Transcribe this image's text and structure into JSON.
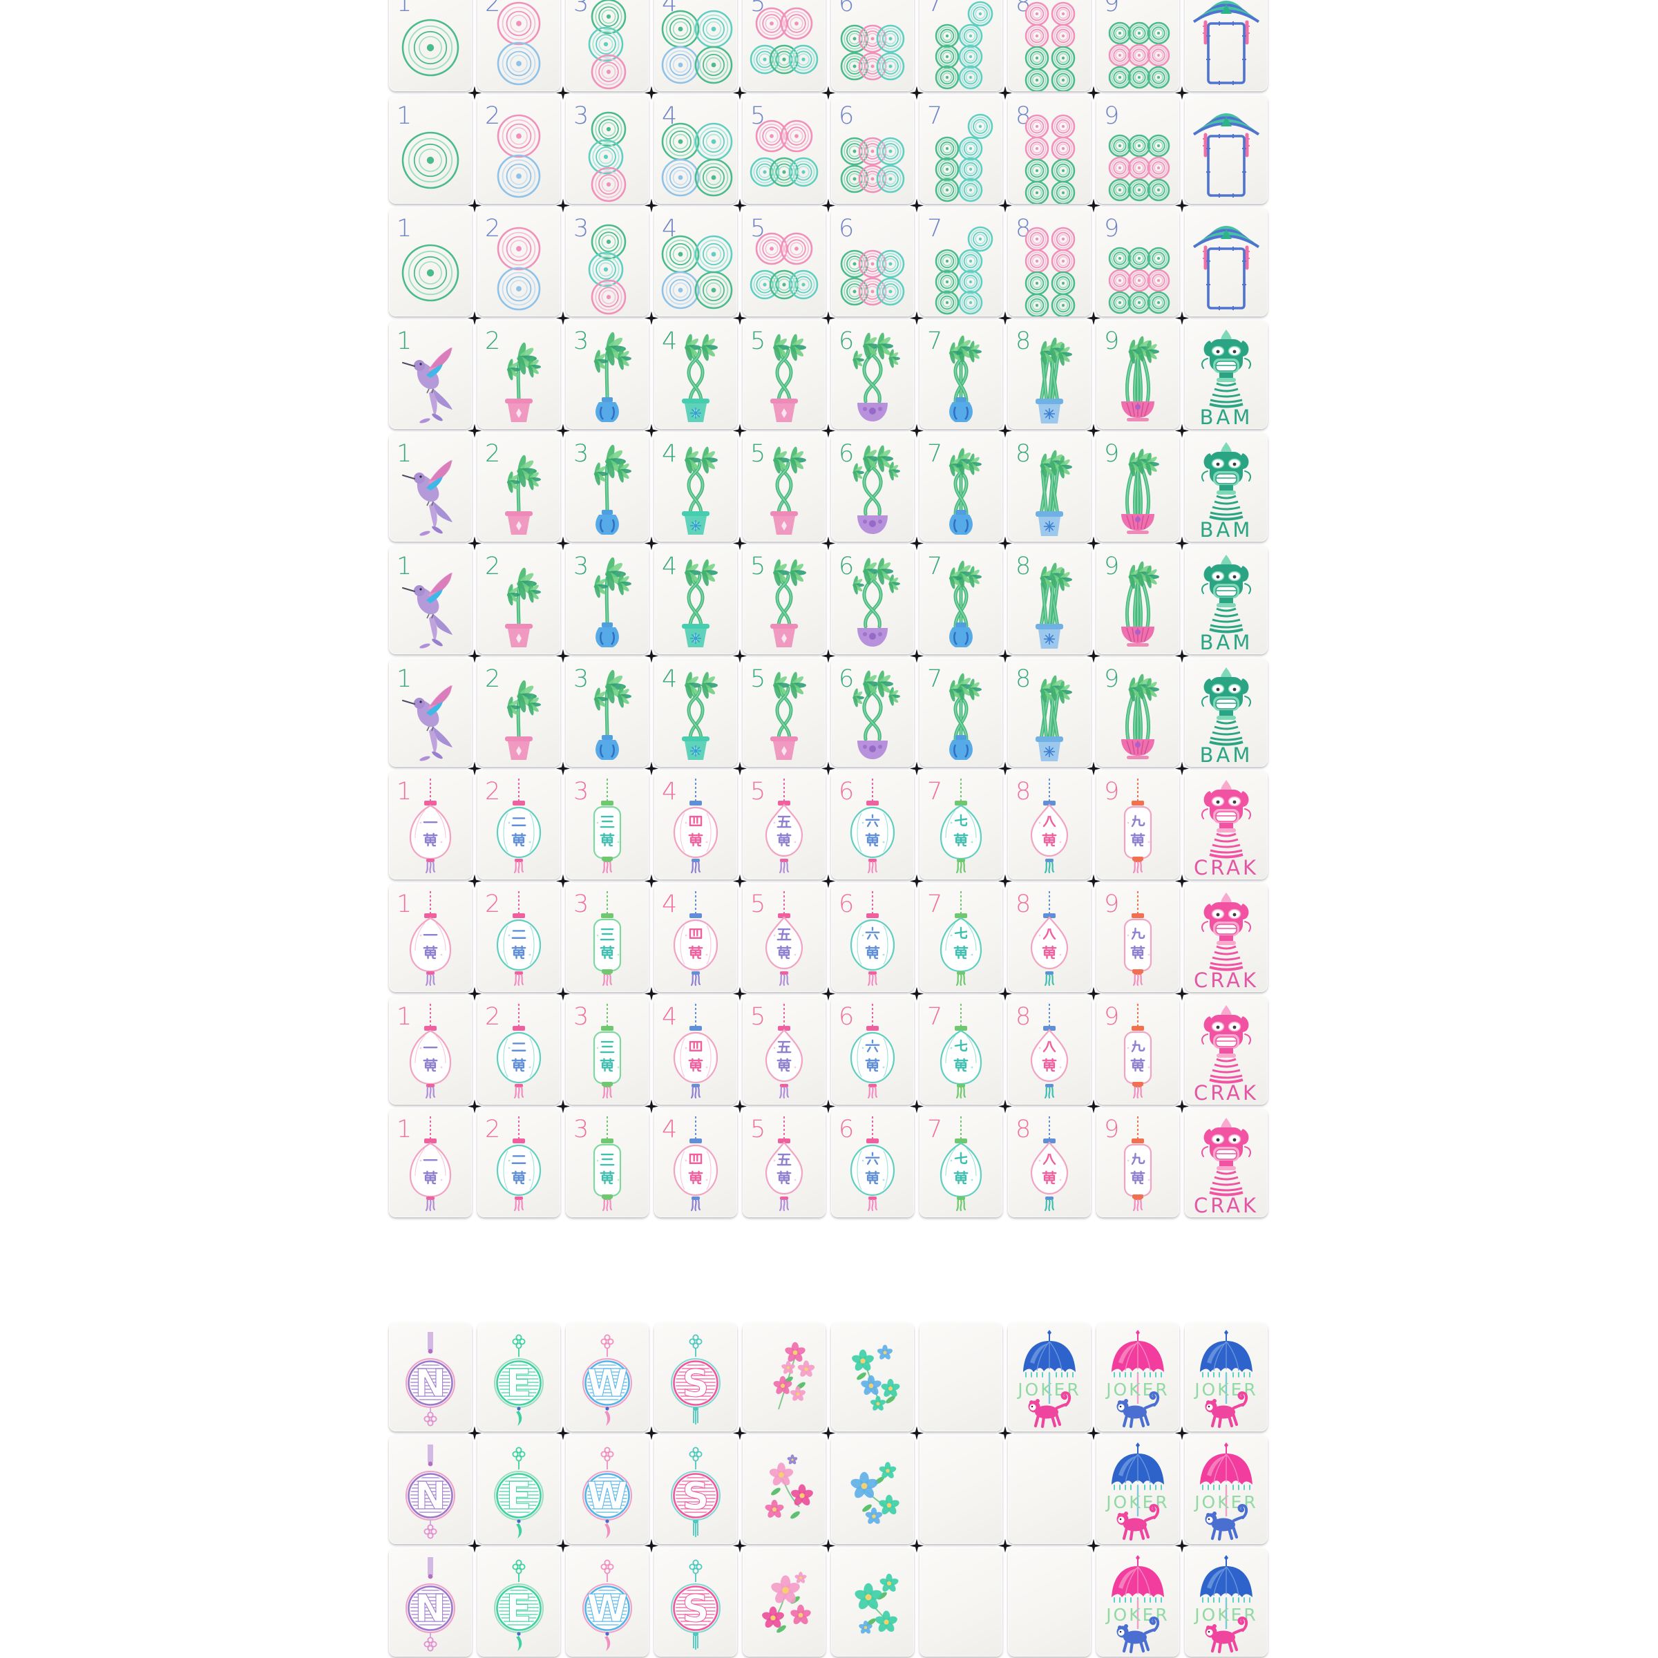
{
  "palette": {
    "tile_face": "#f6f5f2",
    "junction_shadow": "#15151a",
    "dot_number": "#6e84c4",
    "bam_number": "#3aa87f",
    "crak_number": "#ef719f",
    "green": "#4bbb8b",
    "mint": "#9adfc0",
    "teal": "#5fcfc2",
    "teal_light": "#a9e6de",
    "pink": "#f190bb",
    "pink_light": "#f7c0d8",
    "sky": "#8fc2e8",
    "sky_light": "#c6def2",
    "rose": "#ef5fa2",
    "blue": "#4f74cf",
    "purple": "#9b77cc",
    "lavender": "#b99add",
    "joker_green": "#92d9a4",
    "bam_dragon_green": "#2aa483",
    "crak_dragon_pink": "#f153a2",
    "leaf_green": "#46b86f",
    "stalk_green": "#49b87e"
  },
  "suits": {
    "dots": {
      "number_color": "#6e84c4"
    },
    "bams": {
      "number_color": "#3aa87f",
      "dragon_label": "BAM"
    },
    "craks": {
      "number_color": "#ef719f",
      "dragon_label": "CRAK"
    },
    "jokers": {
      "label": "JOKER"
    },
    "winds": {
      "letters": [
        "N",
        "E",
        "W",
        "S"
      ]
    }
  },
  "top_board": {
    "rows": [
      {
        "suit": "dots",
        "cut_top": true,
        "tiles": [
          {
            "type": "dot",
            "n": 1
          },
          {
            "type": "dot",
            "n": 2
          },
          {
            "type": "dot",
            "n": 3
          },
          {
            "type": "dot",
            "n": 4
          },
          {
            "type": "dot",
            "n": 5
          },
          {
            "type": "dot",
            "n": 6
          },
          {
            "type": "dot",
            "n": 7
          },
          {
            "type": "dot",
            "n": 8
          },
          {
            "type": "dot",
            "n": 9
          },
          {
            "type": "soap"
          }
        ]
      },
      {
        "suit": "dots",
        "tiles": [
          {
            "type": "dot",
            "n": 1
          },
          {
            "type": "dot",
            "n": 2
          },
          {
            "type": "dot",
            "n": 3
          },
          {
            "type": "dot",
            "n": 4
          },
          {
            "type": "dot",
            "n": 5
          },
          {
            "type": "dot",
            "n": 6
          },
          {
            "type": "dot",
            "n": 7
          },
          {
            "type": "dot",
            "n": 8
          },
          {
            "type": "dot",
            "n": 9
          },
          {
            "type": "soap"
          }
        ]
      },
      {
        "suit": "dots",
        "tiles": [
          {
            "type": "dot",
            "n": 1
          },
          {
            "type": "dot",
            "n": 2
          },
          {
            "type": "dot",
            "n": 3
          },
          {
            "type": "dot",
            "n": 4
          },
          {
            "type": "dot",
            "n": 5
          },
          {
            "type": "dot",
            "n": 6
          },
          {
            "type": "dot",
            "n": 7
          },
          {
            "type": "dot",
            "n": 8
          },
          {
            "type": "dot",
            "n": 9
          },
          {
            "type": "soap"
          }
        ]
      },
      {
        "suit": "bams",
        "tiles": [
          {
            "type": "bam",
            "n": 1
          },
          {
            "type": "bam",
            "n": 2
          },
          {
            "type": "bam",
            "n": 3
          },
          {
            "type": "bam",
            "n": 4
          },
          {
            "type": "bam",
            "n": 5
          },
          {
            "type": "bam",
            "n": 6
          },
          {
            "type": "bam",
            "n": 7
          },
          {
            "type": "bam",
            "n": 8
          },
          {
            "type": "bam",
            "n": 9
          },
          {
            "type": "dragon",
            "suit": "bams",
            "label": "BAM"
          }
        ]
      },
      {
        "suit": "bams",
        "tiles": [
          {
            "type": "bam",
            "n": 1
          },
          {
            "type": "bam",
            "n": 2
          },
          {
            "type": "bam",
            "n": 3
          },
          {
            "type": "bam",
            "n": 4
          },
          {
            "type": "bam",
            "n": 5
          },
          {
            "type": "bam",
            "n": 6
          },
          {
            "type": "bam",
            "n": 7
          },
          {
            "type": "bam",
            "n": 8
          },
          {
            "type": "bam",
            "n": 9
          },
          {
            "type": "dragon",
            "suit": "bams",
            "label": "BAM"
          }
        ]
      },
      {
        "suit": "bams",
        "tiles": [
          {
            "type": "bam",
            "n": 1
          },
          {
            "type": "bam",
            "n": 2
          },
          {
            "type": "bam",
            "n": 3
          },
          {
            "type": "bam",
            "n": 4
          },
          {
            "type": "bam",
            "n": 5
          },
          {
            "type": "bam",
            "n": 6
          },
          {
            "type": "bam",
            "n": 7
          },
          {
            "type": "bam",
            "n": 8
          },
          {
            "type": "bam",
            "n": 9
          },
          {
            "type": "dragon",
            "suit": "bams",
            "label": "BAM"
          }
        ]
      },
      {
        "suit": "bams",
        "tiles": [
          {
            "type": "bam",
            "n": 1
          },
          {
            "type": "bam",
            "n": 2
          },
          {
            "type": "bam",
            "n": 3
          },
          {
            "type": "bam",
            "n": 4
          },
          {
            "type": "bam",
            "n": 5
          },
          {
            "type": "bam",
            "n": 6
          },
          {
            "type": "bam",
            "n": 7
          },
          {
            "type": "bam",
            "n": 8
          },
          {
            "type": "bam",
            "n": 9
          },
          {
            "type": "dragon",
            "suit": "bams",
            "label": "BAM"
          }
        ]
      },
      {
        "suit": "craks",
        "tiles": [
          {
            "type": "crak",
            "n": 1,
            "char": "一萬"
          },
          {
            "type": "crak",
            "n": 2,
            "char": "二萬"
          },
          {
            "type": "crak",
            "n": 3,
            "char": "三萬"
          },
          {
            "type": "crak",
            "n": 4,
            "char": "四萬"
          },
          {
            "type": "crak",
            "n": 5,
            "char": "五萬"
          },
          {
            "type": "crak",
            "n": 6,
            "char": "六萬"
          },
          {
            "type": "crak",
            "n": 7,
            "char": "七萬"
          },
          {
            "type": "crak",
            "n": 8,
            "char": "八萬"
          },
          {
            "type": "crak",
            "n": 9,
            "char": "九萬"
          },
          {
            "type": "dragon",
            "suit": "craks",
            "label": "CRAK"
          }
        ]
      },
      {
        "suit": "craks",
        "tiles": [
          {
            "type": "crak",
            "n": 1,
            "char": "一萬"
          },
          {
            "type": "crak",
            "n": 2,
            "char": "二萬"
          },
          {
            "type": "crak",
            "n": 3,
            "char": "三萬"
          },
          {
            "type": "crak",
            "n": 4,
            "char": "四萬"
          },
          {
            "type": "crak",
            "n": 5,
            "char": "五萬"
          },
          {
            "type": "crak",
            "n": 6,
            "char": "六萬"
          },
          {
            "type": "crak",
            "n": 7,
            "char": "七萬"
          },
          {
            "type": "crak",
            "n": 8,
            "char": "八萬"
          },
          {
            "type": "crak",
            "n": 9,
            "char": "九萬"
          },
          {
            "type": "dragon",
            "suit": "craks",
            "label": "CRAK"
          }
        ]
      },
      {
        "suit": "craks",
        "tiles": [
          {
            "type": "crak",
            "n": 1,
            "char": "一萬"
          },
          {
            "type": "crak",
            "n": 2,
            "char": "二萬"
          },
          {
            "type": "crak",
            "n": 3,
            "char": "三萬"
          },
          {
            "type": "crak",
            "n": 4,
            "char": "四萬"
          },
          {
            "type": "crak",
            "n": 5,
            "char": "五萬"
          },
          {
            "type": "crak",
            "n": 6,
            "char": "六萬"
          },
          {
            "type": "crak",
            "n": 7,
            "char": "七萬"
          },
          {
            "type": "crak",
            "n": 8,
            "char": "八萬"
          },
          {
            "type": "crak",
            "n": 9,
            "char": "九萬"
          },
          {
            "type": "dragon",
            "suit": "craks",
            "label": "CRAK"
          }
        ]
      },
      {
        "suit": "craks",
        "tiles": [
          {
            "type": "crak",
            "n": 1,
            "char": "一萬"
          },
          {
            "type": "crak",
            "n": 2,
            "char": "二萬"
          },
          {
            "type": "crak",
            "n": 3,
            "char": "三萬"
          },
          {
            "type": "crak",
            "n": 4,
            "char": "四萬"
          },
          {
            "type": "crak",
            "n": 5,
            "char": "五萬"
          },
          {
            "type": "crak",
            "n": 6,
            "char": "六萬"
          },
          {
            "type": "crak",
            "n": 7,
            "char": "七萬"
          },
          {
            "type": "crak",
            "n": 8,
            "char": "八萬"
          },
          {
            "type": "crak",
            "n": 9,
            "char": "九萬"
          },
          {
            "type": "dragon",
            "suit": "craks",
            "label": "CRAK"
          }
        ]
      }
    ]
  },
  "bottom_board": {
    "rows": [
      {
        "suit": "honors",
        "tiles": [
          {
            "type": "wind",
            "letter": "N"
          },
          {
            "type": "wind",
            "letter": "E"
          },
          {
            "type": "wind",
            "letter": "W"
          },
          {
            "type": "wind",
            "letter": "S"
          },
          {
            "type": "flower",
            "variant": 1
          },
          {
            "type": "flower",
            "variant": 2
          },
          {
            "type": "blank"
          },
          {
            "type": "joker",
            "label": "JOKER",
            "umbrella": "blue",
            "monkey": "pink"
          },
          {
            "type": "joker",
            "label": "JOKER",
            "umbrella": "pink",
            "monkey": "blue"
          },
          {
            "type": "joker",
            "label": "JOKER",
            "umbrella": "blue",
            "monkey": "pink"
          }
        ]
      },
      {
        "suit": "honors",
        "tiles": [
          {
            "type": "wind",
            "letter": "N"
          },
          {
            "type": "wind",
            "letter": "E"
          },
          {
            "type": "wind",
            "letter": "W"
          },
          {
            "type": "wind",
            "letter": "S"
          },
          {
            "type": "flower",
            "variant": 3
          },
          {
            "type": "flower",
            "variant": 4
          },
          {
            "type": "blank"
          },
          {
            "type": "blank"
          },
          {
            "type": "joker",
            "label": "JOKER",
            "umbrella": "blue",
            "monkey": "pink"
          },
          {
            "type": "joker",
            "label": "JOKER",
            "umbrella": "pink",
            "monkey": "blue"
          }
        ]
      },
      {
        "suit": "honors",
        "cut_bottom": true,
        "tiles": [
          {
            "type": "wind",
            "letter": "N"
          },
          {
            "type": "wind",
            "letter": "E"
          },
          {
            "type": "wind",
            "letter": "W"
          },
          {
            "type": "wind",
            "letter": "S"
          },
          {
            "type": "flower",
            "variant": 5
          },
          {
            "type": "flower",
            "variant": 6
          },
          {
            "type": "blank"
          },
          {
            "type": "blank"
          },
          {
            "type": "joker",
            "label": "JOKER",
            "umbrella": "pink",
            "monkey": "blue"
          },
          {
            "type": "joker",
            "label": "JOKER",
            "umbrella": "blue",
            "monkey": "pink"
          }
        ]
      }
    ]
  }
}
